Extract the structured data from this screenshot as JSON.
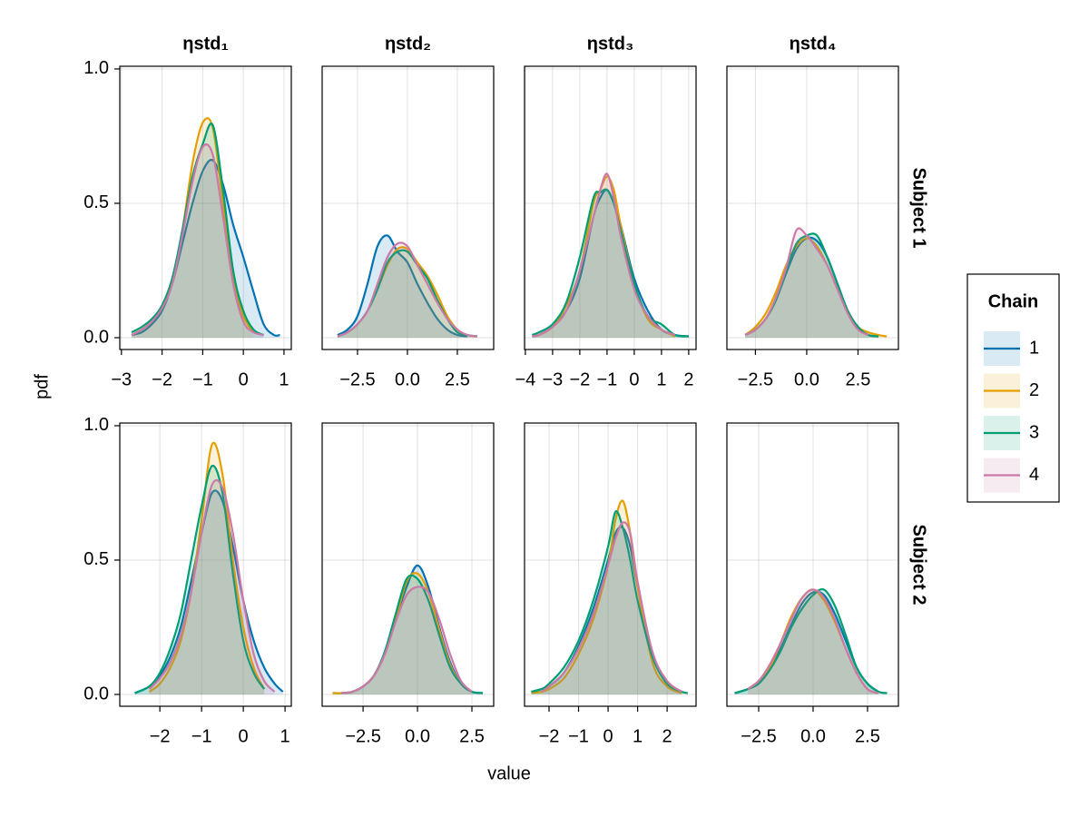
{
  "chart_data": {
    "type": "density",
    "xlabel": "value",
    "ylabel": "pdf",
    "legend_title": "Chain",
    "legend": "right",
    "grid": true,
    "ylim": [
      -0.044,
      1.01
    ],
    "yticks": [
      {
        "value": 0,
        "label": "0.0"
      },
      {
        "value": 0.5,
        "label": "0.5"
      },
      {
        "value": 1,
        "label": "1.0"
      }
    ],
    "series": [
      {
        "name": "1",
        "color": "#0072b2"
      },
      {
        "name": "2",
        "color": "#e69f00"
      },
      {
        "name": "3",
        "color": "#009e73"
      },
      {
        "name": "4",
        "color": "#cc79a7"
      }
    ],
    "panels": [
      {
        "title": "ηstd₁",
        "xlim": [
          -3.04,
          1.18
        ],
        "xticks": [
          {
            "value": -3,
            "label": "−3"
          },
          {
            "value": -2,
            "label": "−2"
          },
          {
            "value": -1,
            "label": "−1"
          },
          0,
          1
        ],
        "x": [
          -2.75,
          -2.5,
          -2.25,
          -2,
          -1.75,
          -1.5,
          -1.25,
          -1,
          -0.75,
          -0.5,
          -0.25,
          0,
          0.25,
          0.5,
          0.75,
          0.9
        ],
        "values": [
          [
            0.01,
            0.02,
            0.05,
            0.1,
            0.2,
            0.35,
            0.5,
            0.62,
            0.66,
            0.57,
            0.42,
            0.3,
            0.17,
            0.05,
            0.01,
            0.01
          ],
          [
            0.01,
            0.03,
            0.06,
            0.12,
            0.22,
            0.4,
            0.65,
            0.8,
            0.78,
            0.5,
            0.22,
            0.08,
            0.02,
            null,
            null,
            null
          ],
          [
            0.02,
            0.04,
            0.07,
            0.12,
            0.22,
            0.4,
            0.6,
            0.72,
            0.79,
            0.55,
            0.25,
            0.1,
            0.03,
            0.01,
            null,
            null
          ],
          [
            0.01,
            0.03,
            0.06,
            0.11,
            0.2,
            0.38,
            0.58,
            0.71,
            0.68,
            0.45,
            0.2,
            0.06,
            0.02,
            0.01,
            null,
            null
          ]
        ]
      },
      {
        "title": "ηstd₂",
        "xlim": [
          -4.27,
          4.32
        ],
        "xticks": [
          {
            "value": -2.5,
            "label": "−2.5"
          },
          {
            "value": 0,
            "label": "0.0"
          },
          2.5
        ],
        "x": [
          -3.5,
          -3,
          -2.5,
          -2,
          -1.5,
          -1,
          -0.5,
          0,
          0.5,
          1,
          1.5,
          2,
          2.5,
          3,
          3.5
        ],
        "values": [
          [
            0.01,
            0.03,
            0.08,
            0.2,
            0.34,
            0.38,
            0.32,
            0.28,
            0.2,
            0.13,
            0.07,
            0.03,
            0.01,
            0.005,
            null
          ],
          [
            0.005,
            0.02,
            0.05,
            0.1,
            0.18,
            0.27,
            0.33,
            0.33,
            0.28,
            0.23,
            0.16,
            0.08,
            0.03,
            0.01,
            0.005
          ],
          [
            0.005,
            0.02,
            0.05,
            0.1,
            0.18,
            0.28,
            0.32,
            0.32,
            0.27,
            0.22,
            0.14,
            0.07,
            0.02,
            0.01,
            0.005
          ],
          [
            0.005,
            0.02,
            0.05,
            0.1,
            0.2,
            0.3,
            0.35,
            0.34,
            0.27,
            0.2,
            0.13,
            0.07,
            0.03,
            0.01,
            0.005
          ]
        ]
      },
      {
        "title": "ηstd₃",
        "xlim": [
          -4.03,
          2.27
        ],
        "xticks": [
          {
            "value": -4,
            "label": "−4"
          },
          {
            "value": -3,
            "label": "−3"
          },
          {
            "value": -2,
            "label": "−2"
          },
          {
            "value": -1,
            "label": "−1"
          },
          0,
          1,
          2
        ],
        "x": [
          -3.75,
          -3.5,
          -3,
          -2.5,
          -2,
          -1.5,
          -1.25,
          -1,
          -0.75,
          -0.5,
          0,
          0.5,
          1,
          1.5,
          2
        ],
        "values": [
          [
            0.005,
            0.01,
            0.04,
            0.1,
            0.22,
            0.45,
            0.52,
            0.55,
            0.5,
            0.42,
            0.22,
            0.1,
            0.03,
            0.01,
            0.005
          ],
          [
            0.005,
            0.01,
            0.04,
            0.12,
            0.25,
            0.5,
            0.55,
            0.6,
            0.55,
            0.42,
            0.2,
            0.07,
            0.03,
            0.005,
            null
          ],
          [
            0.01,
            0.02,
            0.05,
            0.13,
            0.3,
            0.52,
            0.54,
            0.55,
            0.5,
            0.4,
            0.2,
            0.08,
            0.05,
            0.01,
            0.005
          ],
          [
            0.005,
            0.01,
            0.04,
            0.1,
            0.25,
            0.45,
            0.55,
            0.61,
            0.52,
            0.38,
            0.18,
            0.08,
            0.03,
            0.01,
            null
          ]
        ]
      },
      {
        "title": "ηstd₄",
        "row_label": "Subject 1",
        "xlim": [
          -3.89,
          4.47
        ],
        "xticks": [
          {
            "value": -2.5,
            "label": "−2.5"
          },
          {
            "value": 0,
            "label": "0.0"
          },
          2.5
        ],
        "x": [
          -3,
          -2.5,
          -2,
          -1.5,
          -1,
          -0.5,
          0,
          0.5,
          1,
          1.5,
          2,
          2.5,
          3,
          3.5,
          3.9
        ],
        "values": [
          [
            0.01,
            0.03,
            0.07,
            0.14,
            0.24,
            0.33,
            0.37,
            0.36,
            0.3,
            0.2,
            0.1,
            0.04,
            0.01,
            0.005,
            null
          ],
          [
            0.01,
            0.04,
            0.09,
            0.17,
            0.27,
            0.34,
            0.37,
            0.34,
            0.27,
            0.18,
            0.1,
            0.04,
            0.02,
            0.01,
            0.005
          ],
          [
            0.01,
            0.03,
            0.07,
            0.14,
            0.25,
            0.35,
            0.38,
            0.38,
            0.3,
            0.2,
            0.1,
            0.04,
            0.01,
            0.005,
            null
          ],
          [
            0.01,
            0.03,
            0.07,
            0.15,
            0.26,
            0.4,
            0.38,
            0.33,
            0.27,
            0.18,
            0.09,
            0.03,
            0.01,
            null,
            null
          ]
        ]
      },
      {
        "xlim": [
          -2.96,
          1.15
        ],
        "xticks": [
          {
            "value": -2,
            "label": "−2"
          },
          {
            "value": -1,
            "label": "−1"
          },
          0,
          1
        ],
        "x": [
          -2.6,
          -2.25,
          -2,
          -1.75,
          -1.5,
          -1.25,
          -1,
          -0.75,
          -0.5,
          -0.25,
          0,
          0.25,
          0.5,
          0.75,
          0.95
        ],
        "values": [
          [
            0.005,
            0.03,
            0.07,
            0.14,
            0.25,
            0.42,
            0.6,
            0.75,
            0.72,
            0.55,
            0.35,
            0.2,
            0.1,
            0.04,
            0.01
          ],
          [
            null,
            0.01,
            0.04,
            0.1,
            0.2,
            0.38,
            0.65,
            0.93,
            0.82,
            0.5,
            0.25,
            0.1,
            0.02,
            null,
            null
          ],
          [
            0.005,
            0.03,
            0.08,
            0.17,
            0.3,
            0.5,
            0.7,
            0.85,
            0.75,
            0.45,
            0.2,
            0.08,
            0.02,
            null,
            null
          ],
          [
            null,
            0.02,
            0.06,
            0.12,
            0.22,
            0.38,
            0.6,
            0.78,
            0.77,
            0.6,
            0.35,
            0.15,
            0.05,
            0.01,
            null
          ]
        ]
      },
      {
        "xlim": [
          -4.38,
          3.5
        ],
        "xticks": [
          {
            "value": -2.5,
            "label": "−2.5"
          },
          {
            "value": 0,
            "label": "0.0"
          },
          2.5
        ],
        "x": [
          -3.9,
          -3.5,
          -3,
          -2.5,
          -2,
          -1.5,
          -1,
          -0.5,
          0,
          0.5,
          1,
          1.5,
          2,
          2.5,
          3
        ],
        "values": [
          [
            0.005,
            0.005,
            0.01,
            0.03,
            0.07,
            0.15,
            0.28,
            0.4,
            0.48,
            0.4,
            0.25,
            0.12,
            0.04,
            0.01,
            0.005
          ],
          [
            0.005,
            0.005,
            0.01,
            0.03,
            0.07,
            0.15,
            0.28,
            0.42,
            0.45,
            0.38,
            0.24,
            0.11,
            0.04,
            0.01,
            null
          ],
          [
            null,
            0.005,
            0.01,
            0.03,
            0.07,
            0.16,
            0.3,
            0.43,
            0.43,
            0.35,
            0.22,
            0.1,
            0.04,
            0.01,
            0.005
          ],
          [
            null,
            0.005,
            0.01,
            0.03,
            0.07,
            0.15,
            0.27,
            0.37,
            0.4,
            0.38,
            0.28,
            0.15,
            0.05,
            0.01,
            null
          ]
        ]
      },
      {
        "xlim": [
          -2.83,
          2.98
        ],
        "xticks": [
          {
            "value": -2,
            "label": "−2"
          },
          {
            "value": -1,
            "label": "−1"
          },
          0,
          1,
          2
        ],
        "x": [
          -2.6,
          -2.25,
          -2,
          -1.5,
          -1,
          -0.5,
          0,
          0.25,
          0.5,
          0.75,
          1,
          1.5,
          2,
          2.5,
          2.7
        ],
        "values": [
          [
            0.01,
            0.02,
            0.03,
            0.08,
            0.18,
            0.32,
            0.5,
            0.6,
            0.62,
            0.55,
            0.4,
            0.15,
            0.04,
            0.01,
            null
          ],
          [
            0.005,
            0.01,
            0.02,
            0.06,
            0.15,
            0.28,
            0.48,
            0.65,
            0.72,
            0.6,
            0.4,
            0.12,
            0.03,
            0.005,
            null
          ],
          [
            0.01,
            0.02,
            0.04,
            0.1,
            0.2,
            0.35,
            0.55,
            0.68,
            0.62,
            0.5,
            0.35,
            0.14,
            0.04,
            0.01,
            0.005
          ],
          [
            null,
            0.01,
            0.03,
            0.08,
            0.17,
            0.3,
            0.48,
            0.58,
            0.64,
            0.6,
            0.42,
            0.16,
            0.05,
            0.01,
            null
          ]
        ]
      },
      {
        "row_label": "Subject 2",
        "xlim": [
          -3.96,
          3.92
        ],
        "xticks": [
          {
            "value": -2.5,
            "label": "−2.5"
          },
          {
            "value": 0,
            "label": "0.0"
          },
          2.5
        ],
        "x": [
          -3.6,
          -3,
          -2.5,
          -2,
          -1.5,
          -1,
          -0.5,
          0,
          0.5,
          1,
          1.5,
          2,
          2.5,
          3,
          3.4
        ],
        "values": [
          [
            0.005,
            0.02,
            0.05,
            0.1,
            0.17,
            0.26,
            0.34,
            0.38,
            0.37,
            0.3,
            0.2,
            0.1,
            0.04,
            0.01,
            null
          ],
          [
            null,
            0.02,
            0.05,
            0.1,
            0.19,
            0.29,
            0.36,
            0.39,
            0.35,
            0.27,
            0.17,
            0.08,
            0.02,
            0.005,
            null
          ],
          [
            0.005,
            0.02,
            0.04,
            0.09,
            0.16,
            0.25,
            0.32,
            0.37,
            0.39,
            0.33,
            0.22,
            0.1,
            0.04,
            0.01,
            0.005
          ],
          [
            null,
            0.02,
            0.05,
            0.11,
            0.19,
            0.28,
            0.36,
            0.39,
            0.36,
            0.28,
            0.17,
            0.08,
            0.02,
            0.005,
            null
          ]
        ]
      }
    ]
  }
}
